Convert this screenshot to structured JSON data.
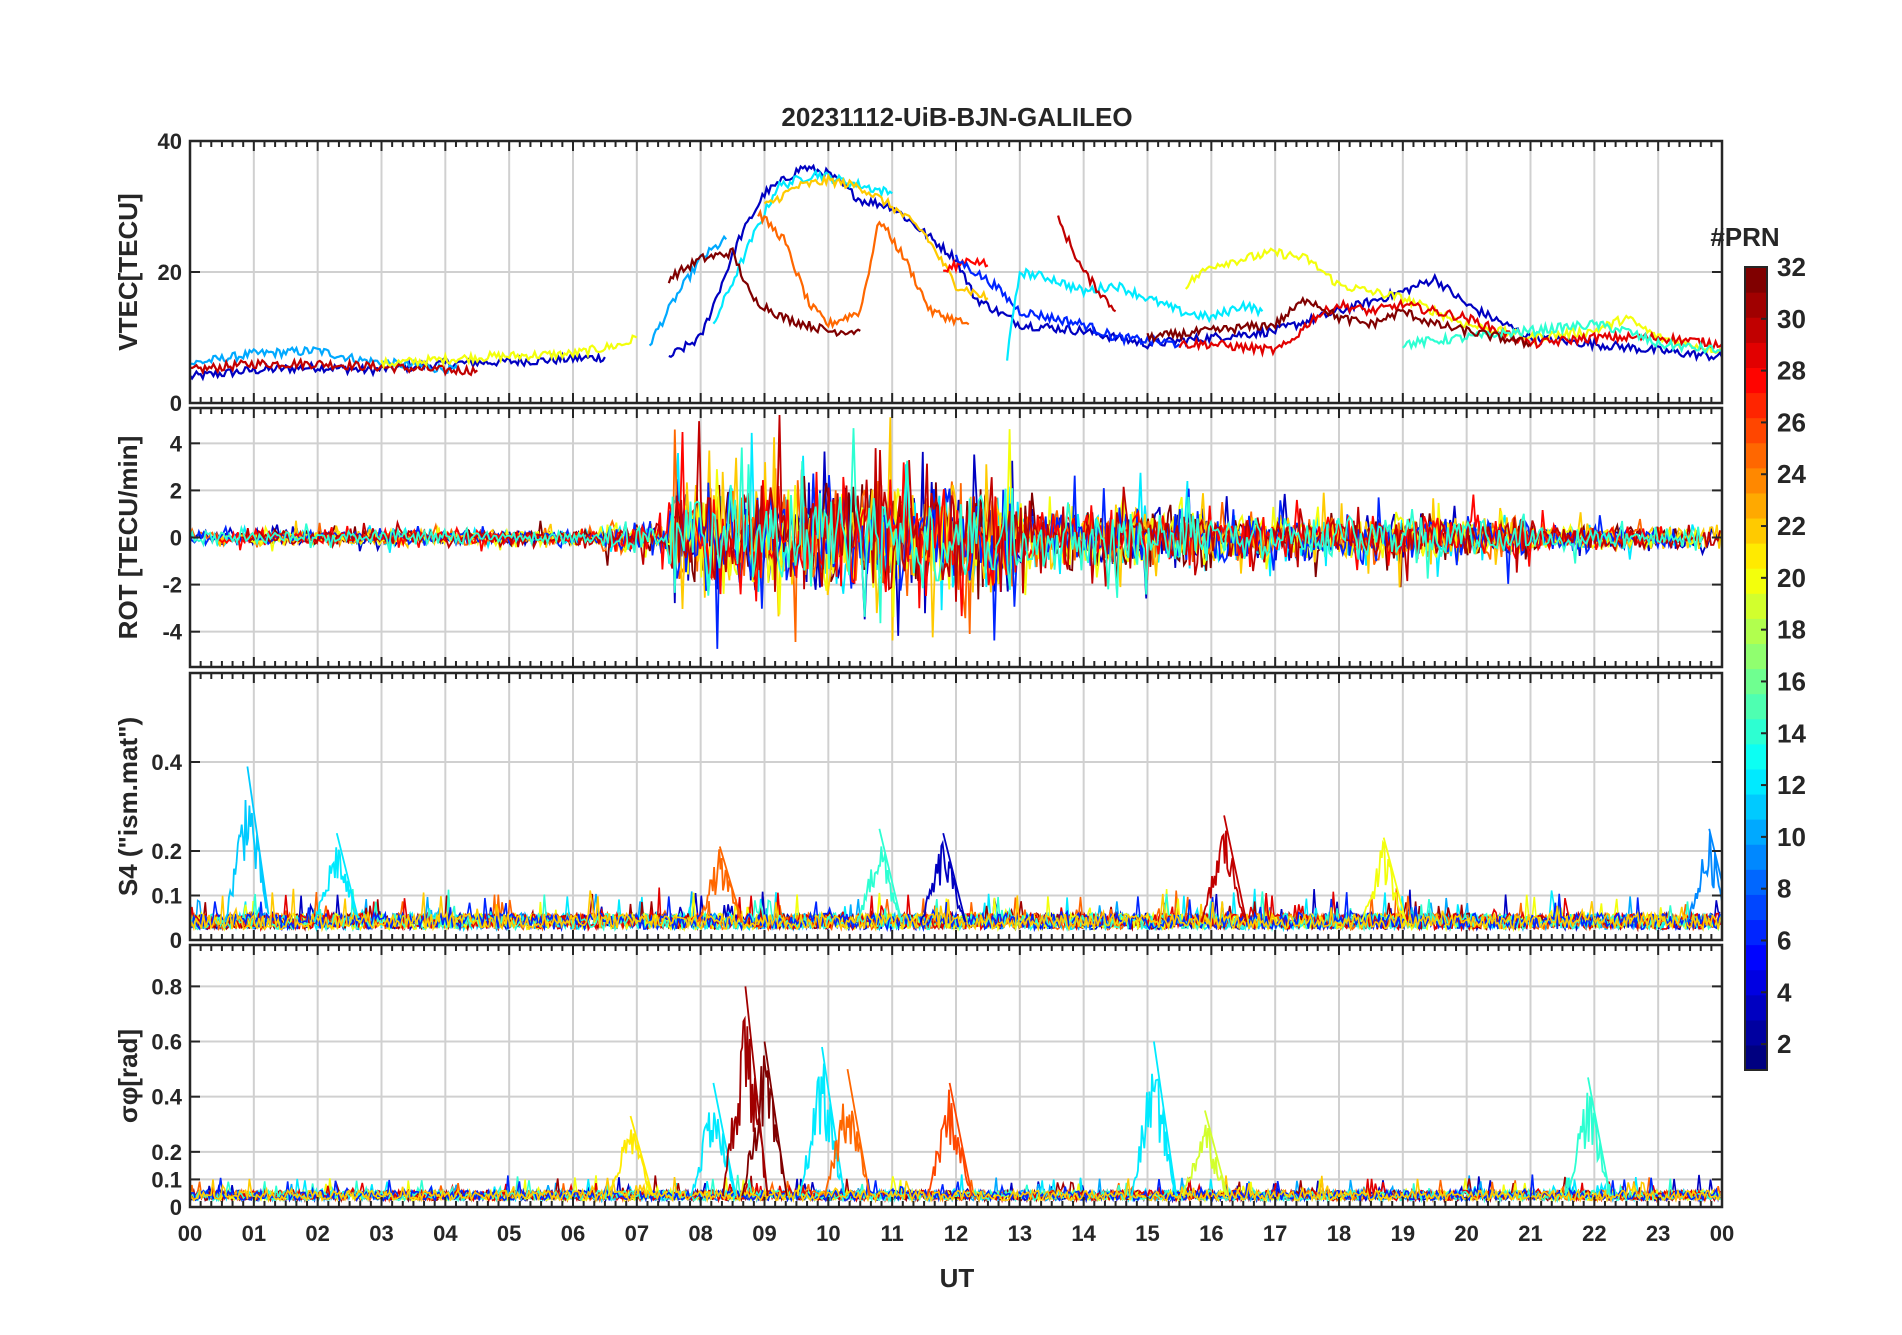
{
  "chart_data": {
    "type": "line",
    "title": "20231112-UiB-BJN-GALILEO",
    "xlabel": "UT",
    "x_tick_labels": [
      "00",
      "01",
      "02",
      "03",
      "04",
      "05",
      "06",
      "07",
      "08",
      "09",
      "10",
      "11",
      "12",
      "13",
      "14",
      "15",
      "16",
      "17",
      "18",
      "19",
      "20",
      "21",
      "22",
      "23",
      "00"
    ],
    "xlim_hours": [
      0,
      24
    ],
    "grid": true,
    "colorbar": {
      "label": "#PRN",
      "range": [
        1,
        32
      ],
      "ticks": [
        "2",
        "4",
        "6",
        "8",
        "10",
        "12",
        "14",
        "16",
        "18",
        "20",
        "22",
        "24",
        "26",
        "28",
        "30",
        "32"
      ],
      "colormap": "jet"
    },
    "panels": [
      {
        "id": "vtec",
        "ylabel": "VTEC[TECU]",
        "ylim": [
          0,
          40
        ],
        "y_ticks": [
          0,
          20,
          40
        ],
        "y_tick_labels": [
          "0",
          "20",
          "40"
        ],
        "series": [
          {
            "prn": 3,
            "points": [
              [
                0.0,
                4
              ],
              [
                1.0,
                5
              ],
              [
                2.0,
                5.5
              ],
              [
                2.8,
                5
              ],
              [
                4.0,
                6
              ],
              [
                5.5,
                6.5
              ],
              [
                6.5,
                7
              ]
            ]
          },
          {
            "prn": 10,
            "points": [
              [
                0.0,
                6
              ],
              [
                1.0,
                7.5
              ],
              [
                2.0,
                8
              ],
              [
                2.7,
                6.5
              ],
              [
                4.2,
                5
              ]
            ]
          },
          {
            "prn": 30,
            "points": [
              [
                0.0,
                5
              ],
              [
                1.0,
                6
              ],
              [
                2.0,
                6
              ],
              [
                3.0,
                5.5
              ],
              [
                4.0,
                5
              ],
              [
                4.5,
                5
              ]
            ]
          },
          {
            "prn": 20,
            "points": [
              [
                3.0,
                6
              ],
              [
                4.5,
                7
              ],
              [
                6.0,
                7.5
              ],
              [
                6.8,
                9
              ],
              [
                7.0,
                10
              ]
            ]
          },
          {
            "prn": 10,
            "points": [
              [
                7.2,
                9
              ],
              [
                7.6,
                16
              ],
              [
                8.0,
                22
              ],
              [
                8.4,
                25
              ]
            ]
          },
          {
            "prn": 3,
            "points": [
              [
                7.5,
                7
              ],
              [
                8.0,
                10
              ],
              [
                8.6,
                25
              ],
              [
                9.0,
                32
              ],
              [
                9.6,
                36
              ],
              [
                10.0,
                35
              ],
              [
                10.5,
                31
              ],
              [
                11.0,
                30
              ],
              [
                11.5,
                26
              ],
              [
                12.0,
                22
              ],
              [
                12.3,
                16
              ],
              [
                13.0,
                12
              ],
              [
                14.0,
                11
              ],
              [
                15.0,
                9
              ],
              [
                16.0,
                10
              ],
              [
                17.0,
                11
              ],
              [
                18.0,
                14
              ],
              [
                19.0,
                17
              ],
              [
                19.5,
                19
              ],
              [
                20.0,
                15
              ],
              [
                21.0,
                10
              ],
              [
                22.0,
                9
              ],
              [
                23.0,
                8
              ],
              [
                24.0,
                7
              ]
            ]
          },
          {
            "prn": 12,
            "points": [
              [
                8.2,
                12
              ],
              [
                8.8,
                25
              ],
              [
                9.2,
                33
              ],
              [
                9.8,
                35
              ],
              [
                10.2,
                34
              ],
              [
                11.0,
                32
              ]
            ]
          },
          {
            "prn": 32,
            "points": [
              [
                7.5,
                19
              ],
              [
                8.0,
                22
              ],
              [
                8.5,
                23
              ],
              [
                8.8,
                16
              ],
              [
                9.3,
                13
              ],
              [
                10.0,
                11
              ],
              [
                10.5,
                11
              ]
            ]
          },
          {
            "prn": 25,
            "points": [
              [
                8.9,
                29
              ],
              [
                9.3,
                25
              ],
              [
                9.7,
                15
              ],
              [
                10.0,
                12
              ],
              [
                10.5,
                14
              ],
              [
                10.8,
                28
              ],
              [
                11.2,
                22
              ],
              [
                11.6,
                14
              ],
              [
                12.2,
                12
              ]
            ]
          },
          {
            "prn": 22,
            "points": [
              [
                9.0,
                30
              ],
              [
                9.5,
                33
              ],
              [
                10.0,
                34
              ],
              [
                10.5,
                33
              ],
              [
                11.0,
                30
              ],
              [
                11.5,
                26
              ],
              [
                12.0,
                18
              ],
              [
                12.5,
                16
              ]
            ]
          },
          {
            "prn": 28,
            "points": [
              [
                11.8,
                20
              ],
              [
                12.2,
                22
              ],
              [
                12.5,
                21
              ]
            ]
          },
          {
            "prn": 6,
            "points": [
              [
                12.0,
                22
              ],
              [
                12.6,
                18
              ],
              [
                13.0,
                14
              ],
              [
                14.0,
                12
              ],
              [
                14.5,
                10
              ],
              [
                15.5,
                9
              ]
            ]
          },
          {
            "prn": 12,
            "points": [
              [
                12.8,
                7
              ],
              [
                13.0,
                20
              ],
              [
                13.5,
                19
              ],
              [
                14.0,
                17
              ],
              [
                14.5,
                18
              ],
              [
                15.0,
                16
              ],
              [
                15.5,
                14
              ],
              [
                16.0,
                13
              ],
              [
                16.5,
                15
              ],
              [
                16.8,
                14
              ]
            ]
          },
          {
            "prn": 30,
            "points": [
              [
                13.6,
                28
              ],
              [
                14.0,
                20
              ],
              [
                14.5,
                14
              ]
            ]
          },
          {
            "prn": 20,
            "points": [
              [
                15.6,
                18
              ],
              [
                16.0,
                21
              ],
              [
                16.5,
                22
              ],
              [
                17.0,
                23
              ],
              [
                17.5,
                22
              ],
              [
                18.0,
                18
              ],
              [
                19.0,
                16
              ],
              [
                20.0,
                12
              ],
              [
                21.0,
                10
              ],
              [
                22.0,
                11
              ],
              [
                22.5,
                13
              ],
              [
                23.0,
                10
              ],
              [
                24.0,
                8
              ]
            ]
          },
          {
            "prn": 29,
            "points": [
              [
                15.5,
                9
              ],
              [
                16.0,
                9
              ],
              [
                17.0,
                8
              ],
              [
                17.2,
                9
              ],
              [
                17.6,
                13
              ],
              [
                18.0,
                15
              ],
              [
                18.5,
                14
              ],
              [
                19.0,
                15
              ],
              [
                19.5,
                14
              ],
              [
                20.0,
                13
              ],
              [
                20.5,
                11
              ],
              [
                21.0,
                9
              ],
              [
                22.0,
                10
              ],
              [
                23.0,
                10
              ],
              [
                24.0,
                9
              ]
            ]
          },
          {
            "prn": 14,
            "points": [
              [
                19.0,
                9
              ],
              [
                20.0,
                10
              ],
              [
                21.0,
                11
              ],
              [
                22.0,
                12
              ],
              [
                22.5,
                11
              ],
              [
                23.0,
                9
              ],
              [
                24.0,
                8
              ]
            ]
          },
          {
            "prn": 32,
            "points": [
              [
                15.0,
                10
              ],
              [
                16.0,
                11
              ],
              [
                17.0,
                12
              ],
              [
                17.5,
                16
              ],
              [
                18.0,
                13
              ],
              [
                18.5,
                12
              ],
              [
                19.0,
                14
              ],
              [
                19.5,
                12
              ],
              [
                20.0,
                11
              ],
              [
                21.0,
                9
              ]
            ]
          }
        ]
      },
      {
        "id": "rot",
        "ylabel": "ROT [TECU/min]",
        "ylim": [
          -5.5,
          5.5
        ],
        "y_ticks": [
          -4,
          -2,
          0,
          2,
          4
        ],
        "y_tick_labels": [
          "-4",
          "-2",
          "0",
          "2",
          "4"
        ],
        "activity": [
          {
            "hours": [
              0,
              6.5
            ],
            "amplitude": 0.6
          },
          {
            "hours": [
              6.5,
              7.5
            ],
            "amplitude": 1.2
          },
          {
            "hours": [
              7.5,
              13
            ],
            "amplitude": 4.5
          },
          {
            "hours": [
              13,
              16
            ],
            "amplitude": 2.5
          },
          {
            "hours": [
              16,
              21
            ],
            "amplitude": 1.8
          },
          {
            "hours": [
              21,
              24
            ],
            "amplitude": 1.0
          }
        ]
      },
      {
        "id": "s4",
        "ylabel": "S4 (\"ism.mat\")",
        "ylim": [
          0,
          0.6
        ],
        "y_ticks": [
          0,
          0.1,
          0.2,
          0.4
        ],
        "y_tick_labels": [
          "0",
          "0.1",
          "0.2",
          "0.4"
        ],
        "baseline": 0.04,
        "peaks": [
          {
            "hour": 0.9,
            "value": 0.39,
            "prn": 11
          },
          {
            "hour": 2.3,
            "value": 0.24,
            "prn": 12
          },
          {
            "hour": 8.3,
            "value": 0.21,
            "prn": 25
          },
          {
            "hour": 10.8,
            "value": 0.25,
            "prn": 14
          },
          {
            "hour": 11.8,
            "value": 0.24,
            "prn": 3
          },
          {
            "hour": 16.2,
            "value": 0.28,
            "prn": 30
          },
          {
            "hour": 18.7,
            "value": 0.23,
            "prn": 20
          },
          {
            "hour": 23.8,
            "value": 0.25,
            "prn": 9
          }
        ]
      },
      {
        "id": "sigma",
        "ylabel": "σφ[rad]",
        "ylim": [
          0,
          0.95
        ],
        "y_ticks": [
          0,
          0.1,
          0.2,
          0.4,
          0.6,
          0.8
        ],
        "y_tick_labels": [
          "0",
          "0.1",
          "0.2",
          "0.4",
          "0.6",
          "0.8"
        ],
        "baseline": 0.04,
        "peaks": [
          {
            "hour": 6.9,
            "value": 0.33,
            "prn": 21
          },
          {
            "hour": 8.2,
            "value": 0.45,
            "prn": 12
          },
          {
            "hour": 8.7,
            "value": 0.8,
            "prn": 31
          },
          {
            "hour": 9.0,
            "value": 0.6,
            "prn": 32
          },
          {
            "hour": 9.9,
            "value": 0.58,
            "prn": 12
          },
          {
            "hour": 10.3,
            "value": 0.5,
            "prn": 25
          },
          {
            "hour": 11.9,
            "value": 0.45,
            "prn": 26
          },
          {
            "hour": 15.1,
            "value": 0.6,
            "prn": 12
          },
          {
            "hour": 15.9,
            "value": 0.35,
            "prn": 19
          },
          {
            "hour": 21.9,
            "value": 0.47,
            "prn": 14
          }
        ]
      }
    ]
  }
}
